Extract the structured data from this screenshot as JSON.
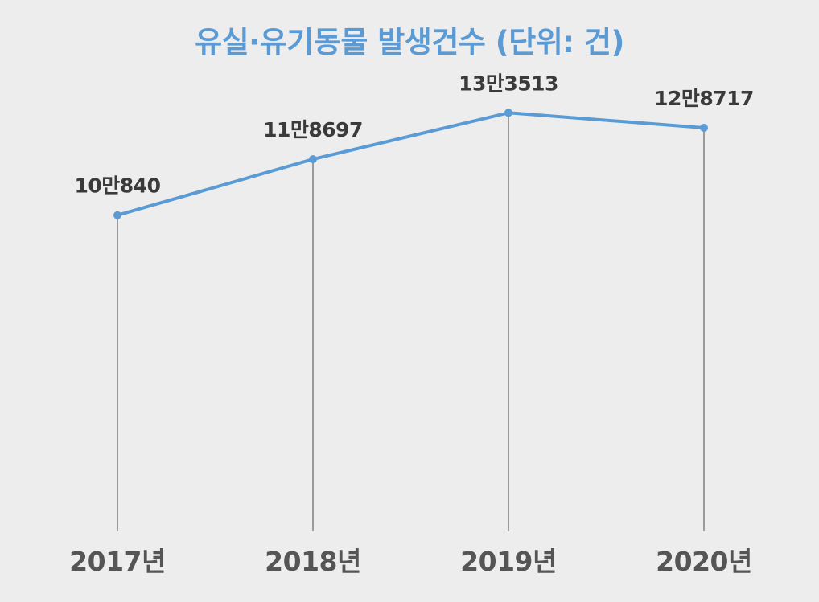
{
  "colors": {
    "background": "#ededee",
    "accent": "#5b9bd5",
    "text": "#3a3a3a",
    "axis_text": "#555555",
    "drop_line": "#9a9a9a"
  },
  "chart_data": {
    "type": "line",
    "title": "유실·유기동물 발생건수 (단위: 건)",
    "categories": [
      "2017년",
      "2018년",
      "2019년",
      "2020년"
    ],
    "values": [
      100840,
      118697,
      133513,
      128717
    ],
    "data_labels": [
      "10만840",
      "11만8697",
      "13만3513",
      "12만8717"
    ],
    "xlabel": "",
    "ylabel": "",
    "ylim": [
      0,
      150000
    ],
    "grid": false,
    "legend": "none"
  }
}
